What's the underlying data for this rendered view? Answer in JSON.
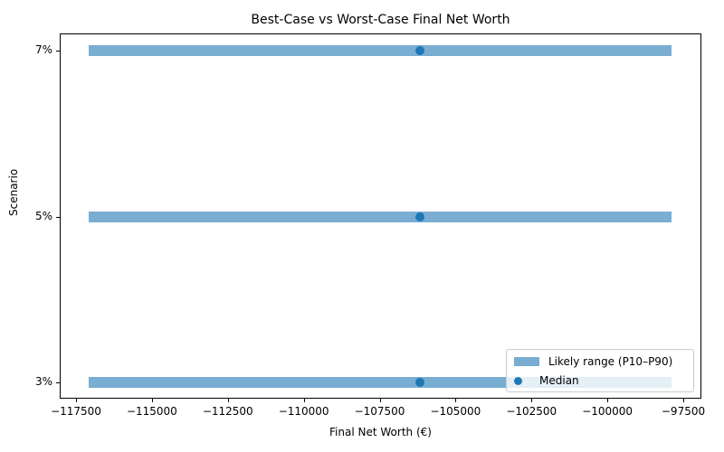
{
  "chart_data": {
    "type": "bar",
    "orientation": "horizontal-range",
    "title": "Best-Case vs Worst-Case Final Net Worth",
    "xlabel": "Final Net Worth (€)",
    "ylabel": "Scenario",
    "categories": [
      "3%",
      "5%",
      "7%"
    ],
    "series": [
      {
        "name": "Likely range (P10–P90)",
        "low": [
          -117080,
          -117080,
          -117080
        ],
        "high": [
          -97890,
          -97890,
          -97890
        ]
      },
      {
        "name": "Median",
        "values": [
          -106170,
          -106170,
          -106170
        ]
      }
    ],
    "xlim": [
      -117950,
      -96900
    ],
    "x_ticks": [
      "−117500",
      "−115000",
      "−112500",
      "−110000",
      "−107500",
      "−105000",
      "−102500",
      "−100000",
      "−97500"
    ],
    "legend_position": "lower right",
    "grid": false
  },
  "legend": {
    "range_label": "Likely range (P10–P90)",
    "median_label": "Median"
  }
}
